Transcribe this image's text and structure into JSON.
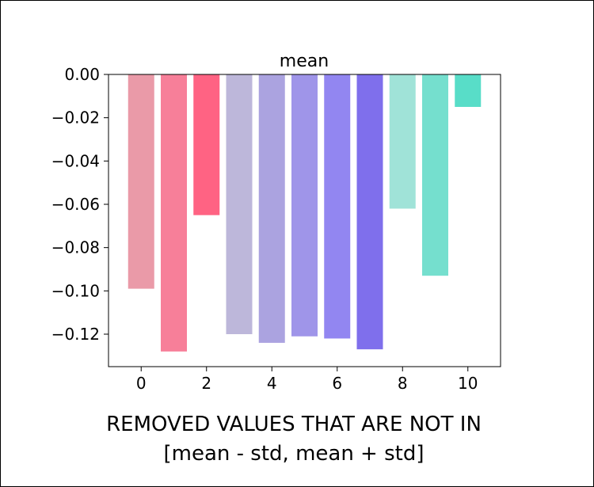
{
  "chart_data": {
    "type": "bar",
    "title": "mean",
    "xlabel": [
      "REMOVED VALUES THAT ARE NOT IN",
      "[mean - std, mean + std]"
    ],
    "ylabel": "",
    "x": [
      0,
      1,
      2,
      3,
      4,
      5,
      6,
      7,
      8,
      9,
      10
    ],
    "values": [
      -0.099,
      -0.128,
      -0.065,
      -0.12,
      -0.124,
      -0.121,
      -0.122,
      -0.127,
      -0.062,
      -0.093,
      -0.015
    ],
    "colors": [
      "#EA9AA8",
      "#F77F99",
      "#FF6383",
      "#BDB7DA",
      "#ABA3E0",
      "#9F95E9",
      "#9286F1",
      "#7F6FEC",
      "#A0E3D8",
      "#75DFCE",
      "#58DDC8"
    ],
    "xlim": [
      -1,
      11
    ],
    "ylim": [
      -0.135,
      0.0
    ],
    "xticks": [
      0,
      2,
      4,
      6,
      8,
      10
    ],
    "xtick_labels": [
      "0",
      "2",
      "4",
      "6",
      "8",
      "10"
    ],
    "yticks": [
      0.0,
      -0.02,
      -0.04,
      -0.06,
      -0.08,
      -0.1,
      -0.12
    ],
    "ytick_labels": [
      "0.00",
      "−0.02",
      "−0.04",
      "−0.06",
      "−0.08",
      "−0.10",
      "−0.12"
    ],
    "grid": false,
    "legend": "none"
  }
}
